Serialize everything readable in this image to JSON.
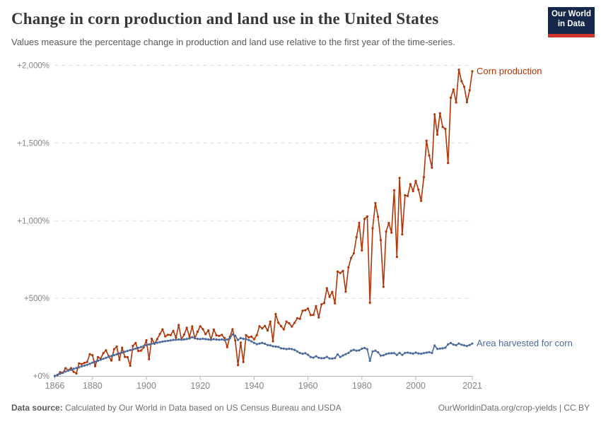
{
  "header": {
    "title": "Change in corn production and land use in the United States",
    "subtitle": "Values measure the percentage change in production and land use relative to the first year of the time-series.",
    "logo": {
      "line1": "Our World",
      "line2": "in Data",
      "bg_color": "#15284B",
      "bar_color": "#D0342C"
    }
  },
  "footer": {
    "source_label": "Data source:",
    "source_text": " Calculated by Our World in Data based on US Census Bureau and USDA",
    "credit": "OurWorldinData.org/crop-yields | CC BY"
  },
  "chart_data": {
    "type": "line",
    "title": "Change in corn production and land use in the United States",
    "xlabel": "",
    "ylabel": "",
    "grid": "horizontal-dashed",
    "legend_position": "line-end-labels",
    "x_years": {
      "from": 1866,
      "to": 2021,
      "step": 1
    },
    "x_ticks": [
      {
        "value": 1866,
        "label": "1866"
      },
      {
        "value": 1880,
        "label": "1880"
      },
      {
        "value": 1900,
        "label": "1900"
      },
      {
        "value": 1920,
        "label": "1920"
      },
      {
        "value": 1940,
        "label": "1940"
      },
      {
        "value": 1960,
        "label": "1960"
      },
      {
        "value": 1980,
        "label": "1980"
      },
      {
        "value": 2000,
        "label": "2000"
      },
      {
        "value": 2021,
        "label": "2021"
      }
    ],
    "y_ticks": [
      {
        "value": 0,
        "label": "+0%"
      },
      {
        "value": 500,
        "label": "+500%"
      },
      {
        "value": 1000,
        "label": "+1,000%"
      },
      {
        "value": 1500,
        "label": "+1,500%"
      },
      {
        "value": 2000,
        "label": "+2,000%"
      }
    ],
    "ylim": [
      0,
      2000
    ],
    "unit": "percent change since 1866",
    "series": [
      {
        "name": "Corn production",
        "color": "#B13507",
        "values": [
          0,
          5,
          24,
          20,
          50,
          36,
          50,
          27,
          16,
          81,
          76,
          84,
          90,
          140,
          134,
          63,
          121,
          112,
          146,
          165,
          128,
          99,
          172,
          189,
          104,
          182,
          123,
          121,
          66,
          194,
          212,
          160,
          163,
          184,
          230,
          108,
          240,
          207,
          237,
          270,
          300,
          255,
          265,
          263,
          290,
          246,
          328,
          235,
          266,
          310,
          251,
          319,
          242,
          285,
          320,
          301,
          269,
          293,
          233,
          299,
          262,
          258,
          265,
          244,
          185,
          252,
          301,
          228,
          70,
          215,
          90,
          262,
          249,
          253,
          236,
          263,
          320,
          306,
          322,
          292,
          350,
          223,
          399,
          343,
          321,
          300,
          350,
          339,
          318,
          342,
          372,
          368,
          420,
          423,
          434,
          392,
          393,
          450,
          377,
          461,
          470,
          565,
          509,
          541,
          468,
          672,
          663,
          676,
          543,
          699,
          760,
          790,
          894,
          986,
          808,
          1011,
          1027,
          471,
          950,
          1114,
          1025,
          875,
          574,
          930,
          985,
          923,
          1196,
          767,
          1275,
          912,
          1163,
          1159,
          1235,
          1190,
          1256,
          1200,
          1127,
          1280,
          1515,
          1420,
          1341,
          1684,
          1554,
          1691,
          1603,
          1591,
          1371,
          1792,
          1845,
          1761,
          1972,
          1898,
          1862,
          1763,
          1840,
          1962
        ]
      },
      {
        "name": "Area harvested for corn",
        "color": "#4C6A9C",
        "values": [
          0,
          7,
          14,
          21,
          28,
          34,
          40,
          46,
          51,
          56,
          62,
          67,
          72,
          78,
          86,
          92,
          98,
          104,
          110,
          117,
          123,
          128,
          134,
          140,
          145,
          151,
          156,
          161,
          166,
          171,
          176,
          181,
          186,
          192,
          198,
          203,
          208,
          211,
          214,
          218,
          221,
          224,
          226,
          229,
          232,
          233,
          235,
          233,
          235,
          238,
          241,
          250,
          244,
          239,
          237,
          240,
          237,
          235,
          233,
          237,
          235,
          233,
          235,
          231,
          235,
          242,
          267,
          259,
          232,
          244,
          239,
          237,
          231,
          223,
          213,
          205,
          209,
          213,
          207,
          199,
          197,
          191,
          189,
          187,
          178,
          176,
          173,
          175,
          173,
          168,
          158,
          148,
          143,
          146,
          136,
          122,
          118,
          127,
          117,
          114,
          115,
          123,
          113,
          112,
          115,
          139,
          122,
          132,
          140,
          148,
          162,
          168,
          163,
          165,
          175,
          180,
          172,
          98,
          158,
          163,
          152,
          131,
          133,
          141,
          145,
          146,
          147,
          135,
          149,
          135,
          148,
          150,
          147,
          144,
          150,
          145,
          143,
          147,
          150,
          153,
          148,
          196,
          174,
          176,
          178,
          182,
          204,
          212,
          202,
          198,
          209,
          201,
          197,
          193,
          199,
          209
        ]
      }
    ]
  },
  "plot_style": {
    "grid_color": "#dcdcdc",
    "axis_color": "#b3b3b3",
    "tick_label_color": "#858585",
    "background": "#ffffff"
  }
}
